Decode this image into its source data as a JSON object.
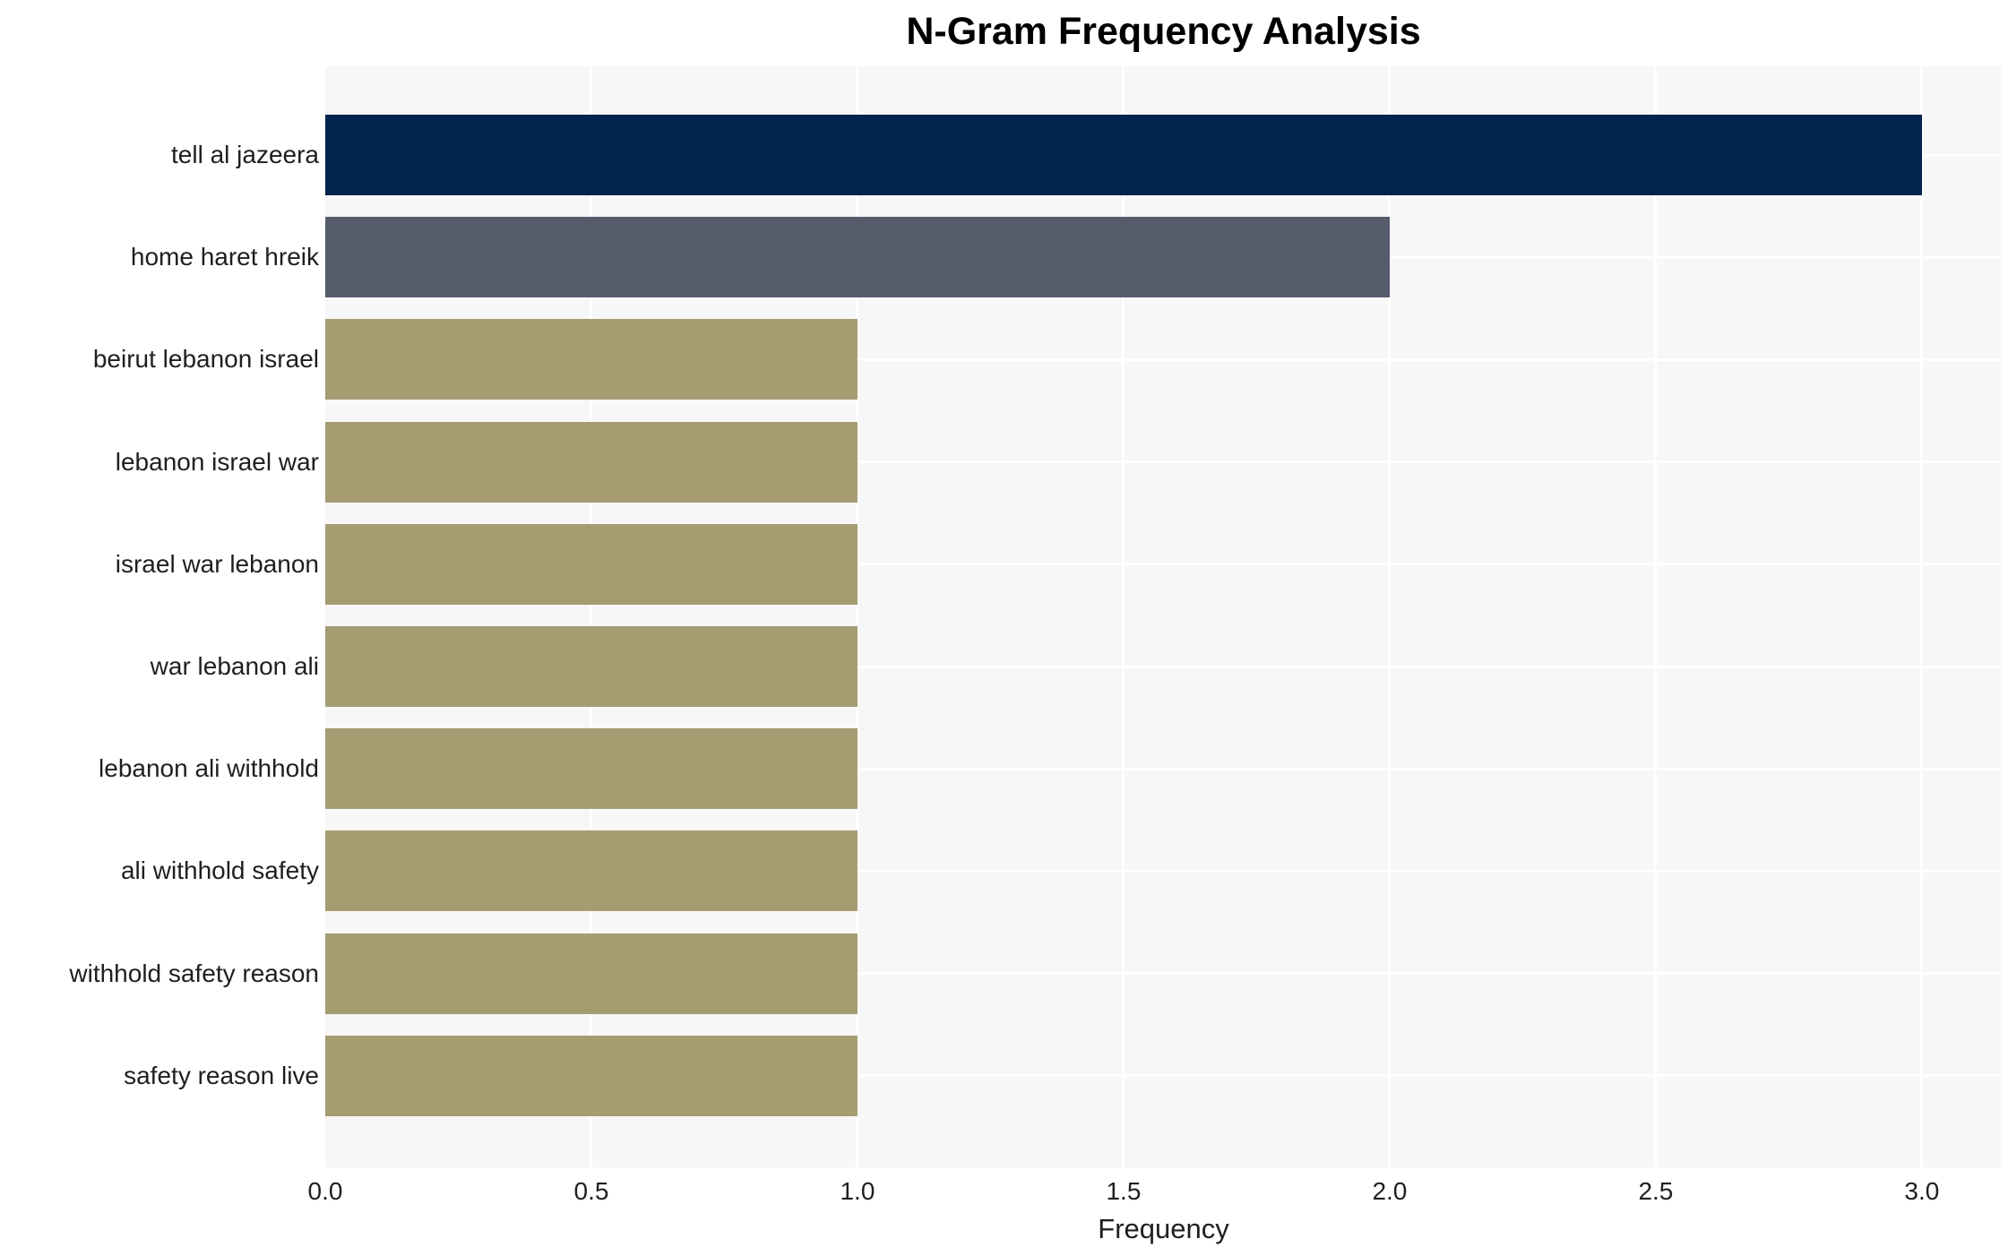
{
  "chart_data": {
    "type": "bar",
    "orientation": "horizontal",
    "title": "N-Gram Frequency Analysis",
    "xlabel": "Frequency",
    "ylabel": "",
    "categories": [
      "tell al jazeera",
      "home haret hreik",
      "beirut lebanon israel",
      "lebanon israel war",
      "israel war lebanon",
      "war lebanon ali",
      "lebanon ali withhold",
      "ali withhold safety",
      "withhold safety reason",
      "safety reason live"
    ],
    "values": [
      3,
      2,
      1,
      1,
      1,
      1,
      1,
      1,
      1,
      1
    ],
    "bar_colors": [
      "#02234e",
      "#565c6c",
      "#a59c72",
      "#a59c72",
      "#a59c72",
      "#a59c72",
      "#a59c72",
      "#a59c72",
      "#a59c72",
      "#a59c72"
    ],
    "xticks": [
      "0.0",
      "0.5",
      "1.0",
      "1.5",
      "2.0",
      "2.5",
      "3.0"
    ],
    "xlim": [
      0,
      3.15
    ],
    "grid": true,
    "legend_position": "none",
    "colors": {
      "plot_background": "#f7f7f7",
      "grid_color": "#ffffff",
      "text_color": "#1f1f1f",
      "title_color": "#000000",
      "page_background": "#ffffff"
    }
  }
}
